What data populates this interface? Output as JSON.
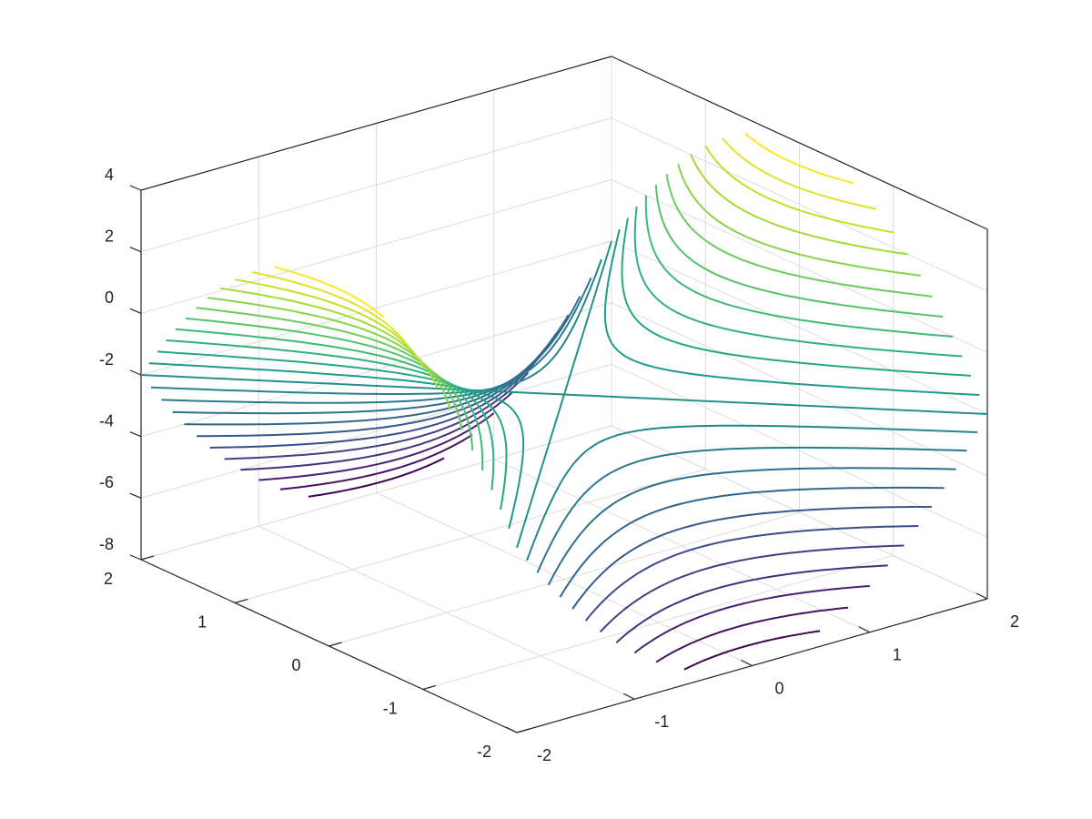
{
  "chart_data": {
    "type": "contour3",
    "xlim": [
      -2,
      2
    ],
    "xticks": [
      -2,
      -1,
      0,
      1,
      2
    ],
    "ylim": [
      -2,
      2
    ],
    "yticks": [
      -2,
      -1,
      0,
      1,
      2
    ],
    "zlim": [
      -8,
      4
    ],
    "zticks": [
      -8,
      -6,
      -4,
      -2,
      0,
      2,
      4
    ],
    "levels": [
      -7.5,
      -7,
      -6.5,
      -6,
      -5.5,
      -5,
      -4.5,
      -4,
      -3.5,
      -3,
      -2.5,
      -2,
      -1.5,
      -1,
      -0.5,
      0,
      0.5,
      1,
      1.5,
      2,
      2.5,
      3,
      3.5
    ],
    "colormap": "viridis",
    "grid": true
  }
}
